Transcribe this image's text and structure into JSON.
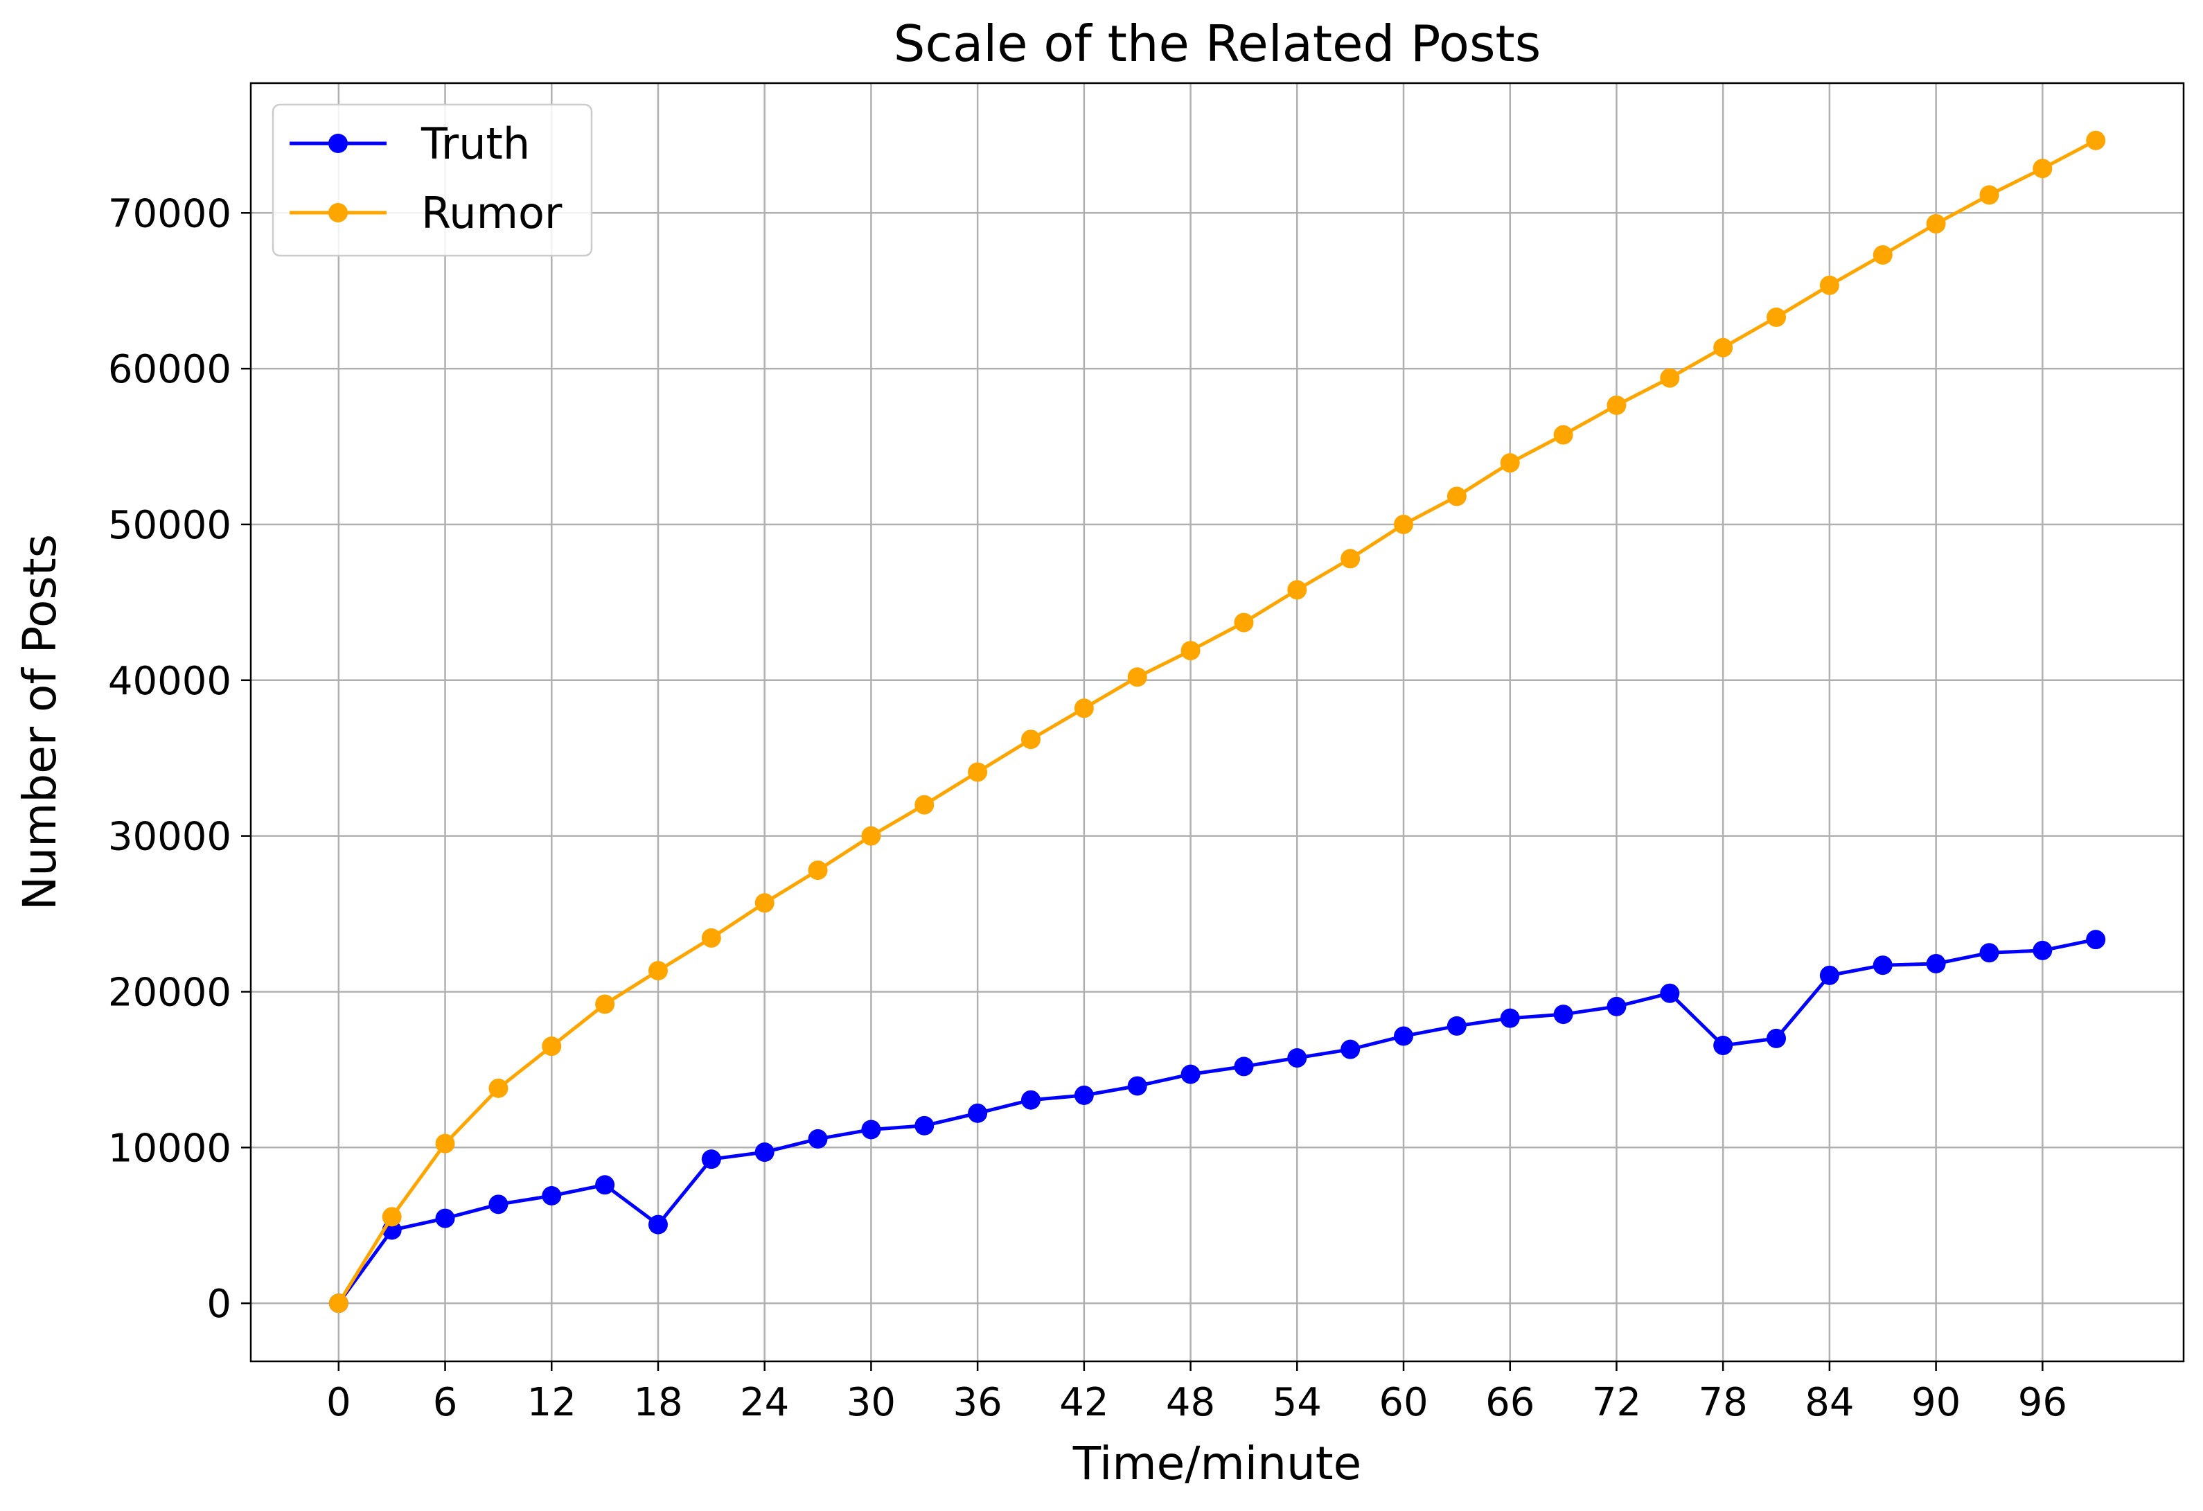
{
  "chart_data": {
    "type": "line",
    "title": "Scale of the Related Posts",
    "xlabel": "Time/minute",
    "ylabel": "Number of Posts",
    "xlim": [
      -4.95,
      103.95
    ],
    "ylim": [
      -3730,
      78330
    ],
    "xticks": [
      0,
      6,
      12,
      18,
      24,
      30,
      36,
      42,
      48,
      54,
      60,
      66,
      72,
      78,
      84,
      90,
      96
    ],
    "yticks": [
      0,
      10000,
      20000,
      30000,
      40000,
      50000,
      60000,
      70000
    ],
    "grid": true,
    "legend_position": "top-left",
    "x": [
      0,
      3,
      6,
      9,
      12,
      15,
      18,
      21,
      24,
      27,
      30,
      33,
      36,
      39,
      42,
      45,
      48,
      51,
      54,
      57,
      60,
      63,
      66,
      69,
      72,
      75,
      78,
      81,
      84,
      87,
      90,
      93,
      96,
      99
    ],
    "series": [
      {
        "name": "Truth",
        "color": "#0000ff",
        "values": [
          0,
          4700,
          5450,
          6350,
          6900,
          7600,
          5050,
          9250,
          9700,
          10550,
          11150,
          11400,
          12200,
          13050,
          13350,
          13950,
          14700,
          15200,
          15750,
          16300,
          17150,
          17800,
          18300,
          18550,
          19050,
          19900,
          16550,
          17000,
          21050,
          21700,
          21800,
          22500,
          22650,
          23350
        ]
      },
      {
        "name": "Rumor",
        "color": "#ffa500",
        "values": [
          0,
          5550,
          10250,
          13800,
          16500,
          19200,
          21350,
          23450,
          25700,
          27800,
          30000,
          32000,
          34100,
          36200,
          38200,
          40200,
          41900,
          43700,
          45800,
          47800,
          50000,
          51800,
          53950,
          55750,
          57650,
          59400,
          61350,
          63300,
          65350,
          67300,
          69300,
          71150,
          72850,
          74650
        ]
      }
    ]
  }
}
